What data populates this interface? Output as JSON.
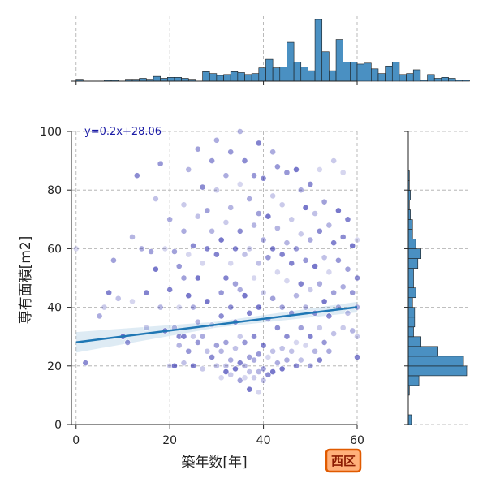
{
  "chart_data": {
    "type": "scatter",
    "xlabel": "築年数[年]",
    "ylabel": "専有面積[m2]",
    "xlim": [
      -1,
      60
    ],
    "ylim": [
      0,
      100
    ],
    "xticks": [
      "0",
      "20",
      "40",
      "60"
    ],
    "yticks": [
      "0",
      "20",
      "40",
      "60",
      "80",
      "100"
    ],
    "grid": true,
    "grid_style": "dashed",
    "point_color": "#1a1aa6",
    "line_color": "#1f77b4",
    "hist_color": "#4a90c2",
    "annotation": "y=0.2x+28.06",
    "regression": {
      "slope": 0.2,
      "intercept": 28.06,
      "x_range": [
        0,
        60
      ]
    },
    "badge": "西区",
    "badge_color": "#ffb07a",
    "badge_border": "#e05a00",
    "x_hist": {
      "bin_start": 0,
      "bin_width": 1.5,
      "counts": [
        2,
        0,
        0,
        0,
        1,
        1,
        0,
        2,
        2,
        3,
        2,
        5,
        3,
        4,
        4,
        3,
        2,
        0,
        10,
        8,
        6,
        7,
        10,
        9,
        7,
        8,
        14,
        23,
        14,
        15,
        41,
        20,
        15,
        11,
        65,
        31,
        11,
        44,
        20,
        20,
        18,
        19,
        13,
        8,
        16,
        20,
        7,
        8,
        12,
        1,
        7,
        3,
        4,
        3,
        1,
        1,
        0,
        0,
        0,
        0
      ]
    },
    "y_hist": {
      "bin_start": 0,
      "bin_width": 3.33,
      "counts": [
        3,
        0,
        0,
        1,
        10,
        55,
        52,
        28,
        12,
        5,
        6,
        6,
        4,
        7,
        5,
        5,
        9,
        12,
        7,
        4,
        4,
        2,
        1,
        2,
        1,
        1,
        0,
        0,
        0,
        0
      ]
    },
    "scatter": {
      "note": "Dense sample of points: listed as [x, y] pairs",
      "points": [
        [
          0,
          60
        ],
        [
          2,
          21
        ],
        [
          5,
          37
        ],
        [
          6,
          40
        ],
        [
          7,
          45
        ],
        [
          8,
          56
        ],
        [
          9,
          43
        ],
        [
          10,
          30
        ],
        [
          11,
          28
        ],
        [
          12,
          64
        ],
        [
          12,
          42
        ],
        [
          13,
          85
        ],
        [
          14,
          60
        ],
        [
          15,
          33
        ],
        [
          15,
          45
        ],
        [
          16,
          59
        ],
        [
          17,
          77
        ],
        [
          17,
          53
        ],
        [
          18,
          89
        ],
        [
          18,
          40
        ],
        [
          19,
          60
        ],
        [
          19,
          32
        ],
        [
          20,
          70
        ],
        [
          20,
          20
        ],
        [
          20,
          46
        ],
        [
          21,
          59
        ],
        [
          21,
          33
        ],
        [
          21,
          20
        ],
        [
          22,
          54
        ],
        [
          22,
          27
        ],
        [
          22,
          40
        ],
        [
          22,
          30
        ],
        [
          23,
          66
        ],
        [
          23,
          75
        ],
        [
          23,
          30
        ],
        [
          23,
          50
        ],
        [
          23,
          21
        ],
        [
          24,
          44
        ],
        [
          24,
          25
        ],
        [
          24,
          87
        ],
        [
          24,
          58
        ],
        [
          25,
          61
        ],
        [
          25,
          40
        ],
        [
          25,
          30
        ],
        [
          25,
          20
        ],
        [
          26,
          94
        ],
        [
          26,
          71
        ],
        [
          26,
          50
        ],
        [
          26,
          28
        ],
        [
          26,
          35
        ],
        [
          27,
          55
        ],
        [
          27,
          81
        ],
        [
          27,
          30
        ],
        [
          27,
          19
        ],
        [
          28,
          60
        ],
        [
          28,
          73
        ],
        [
          28,
          25
        ],
        [
          28,
          42
        ],
        [
          29,
          90
        ],
        [
          29,
          66
        ],
        [
          29,
          34
        ],
        [
          29,
          23
        ],
        [
          30,
          97
        ],
        [
          30,
          80
        ],
        [
          30,
          58
        ],
        [
          30,
          27
        ],
        [
          30,
          20
        ],
        [
          31,
          63
        ],
        [
          31,
          45
        ],
        [
          31,
          25
        ],
        [
          31,
          16
        ],
        [
          31,
          37
        ],
        [
          32,
          85
        ],
        [
          32,
          69
        ],
        [
          32,
          50
        ],
        [
          32,
          28
        ],
        [
          32,
          20
        ],
        [
          32,
          18
        ],
        [
          33,
          93
        ],
        [
          33,
          74
        ],
        [
          33,
          55
        ],
        [
          33,
          40
        ],
        [
          33,
          22
        ],
        [
          33,
          17
        ],
        [
          34,
          60
        ],
        [
          34,
          48
        ],
        [
          34,
          26
        ],
        [
          34,
          19
        ],
        [
          34,
          35
        ],
        [
          35,
          100
        ],
        [
          35,
          82
        ],
        [
          35,
          66
        ],
        [
          35,
          46
        ],
        [
          35,
          30
        ],
        [
          35,
          21
        ],
        [
          35,
          15
        ],
        [
          36,
          58
        ],
        [
          36,
          44
        ],
        [
          36,
          28
        ],
        [
          36,
          20
        ],
        [
          36,
          16
        ],
        [
          36,
          90
        ],
        [
          37,
          77
        ],
        [
          37,
          60
        ],
        [
          37,
          38
        ],
        [
          37,
          23
        ],
        [
          37,
          18
        ],
        [
          37,
          12
        ],
        [
          38,
          85
        ],
        [
          38,
          68
        ],
        [
          38,
          50
        ],
        [
          38,
          30
        ],
        [
          38,
          22
        ],
        [
          38,
          16
        ],
        [
          39,
          96
        ],
        [
          39,
          72
        ],
        [
          39,
          55
        ],
        [
          39,
          40
        ],
        [
          39,
          24
        ],
        [
          39,
          18
        ],
        [
          39,
          11
        ],
        [
          40,
          84
        ],
        [
          40,
          63
        ],
        [
          40,
          45
        ],
        [
          40,
          27
        ],
        [
          40,
          19
        ],
        [
          40,
          15
        ],
        [
          41,
          71
        ],
        [
          41,
          57
        ],
        [
          41,
          36
        ],
        [
          41,
          23
        ],
        [
          41,
          17
        ],
        [
          42,
          93
        ],
        [
          42,
          78
        ],
        [
          42,
          60
        ],
        [
          42,
          43
        ],
        [
          42,
          25
        ],
        [
          42,
          18
        ],
        [
          43,
          88
        ],
        [
          43,
          67
        ],
        [
          43,
          52
        ],
        [
          43,
          33
        ],
        [
          43,
          21
        ],
        [
          44,
          75
        ],
        [
          44,
          58
        ],
        [
          44,
          40
        ],
        [
          44,
          26
        ],
        [
          44,
          19
        ],
        [
          45,
          86
        ],
        [
          45,
          62
        ],
        [
          45,
          49
        ],
        [
          45,
          30
        ],
        [
          45,
          22
        ],
        [
          46,
          70
        ],
        [
          46,
          55
        ],
        [
          46,
          38
        ],
        [
          46,
          25
        ],
        [
          47,
          87
        ],
        [
          47,
          60
        ],
        [
          47,
          44
        ],
        [
          47,
          28
        ],
        [
          47,
          20
        ],
        [
          48,
          80
        ],
        [
          48,
          65
        ],
        [
          48,
          48
        ],
        [
          48,
          33
        ],
        [
          48,
          22
        ],
        [
          49,
          74
        ],
        [
          49,
          56
        ],
        [
          49,
          40
        ],
        [
          49,
          27
        ],
        [
          50,
          82
        ],
        [
          50,
          63
        ],
        [
          50,
          46
        ],
        [
          50,
          30
        ],
        [
          50,
          20
        ],
        [
          51,
          72
        ],
        [
          51,
          54
        ],
        [
          51,
          38
        ],
        [
          51,
          25
        ],
        [
          52,
          87
        ],
        [
          52,
          66
        ],
        [
          52,
          48
        ],
        [
          52,
          33
        ],
        [
          52,
          22
        ],
        [
          53,
          76
        ],
        [
          53,
          57
        ],
        [
          53,
          42
        ],
        [
          53,
          28
        ],
        [
          54,
          68
        ],
        [
          54,
          52
        ],
        [
          54,
          37
        ],
        [
          54,
          25
        ],
        [
          55,
          90
        ],
        [
          55,
          62
        ],
        [
          55,
          45
        ],
        [
          55,
          31
        ],
        [
          56,
          73
        ],
        [
          56,
          56
        ],
        [
          56,
          40
        ],
        [
          57,
          86
        ],
        [
          57,
          64
        ],
        [
          57,
          47
        ],
        [
          57,
          33
        ],
        [
          58,
          70
        ],
        [
          58,
          53
        ],
        [
          58,
          38
        ],
        [
          59,
          61
        ],
        [
          59,
          45
        ],
        [
          59,
          32
        ],
        [
          60,
          63
        ],
        [
          60,
          50
        ],
        [
          60,
          40
        ],
        [
          60,
          30
        ],
        [
          60,
          23
        ]
      ]
    }
  }
}
